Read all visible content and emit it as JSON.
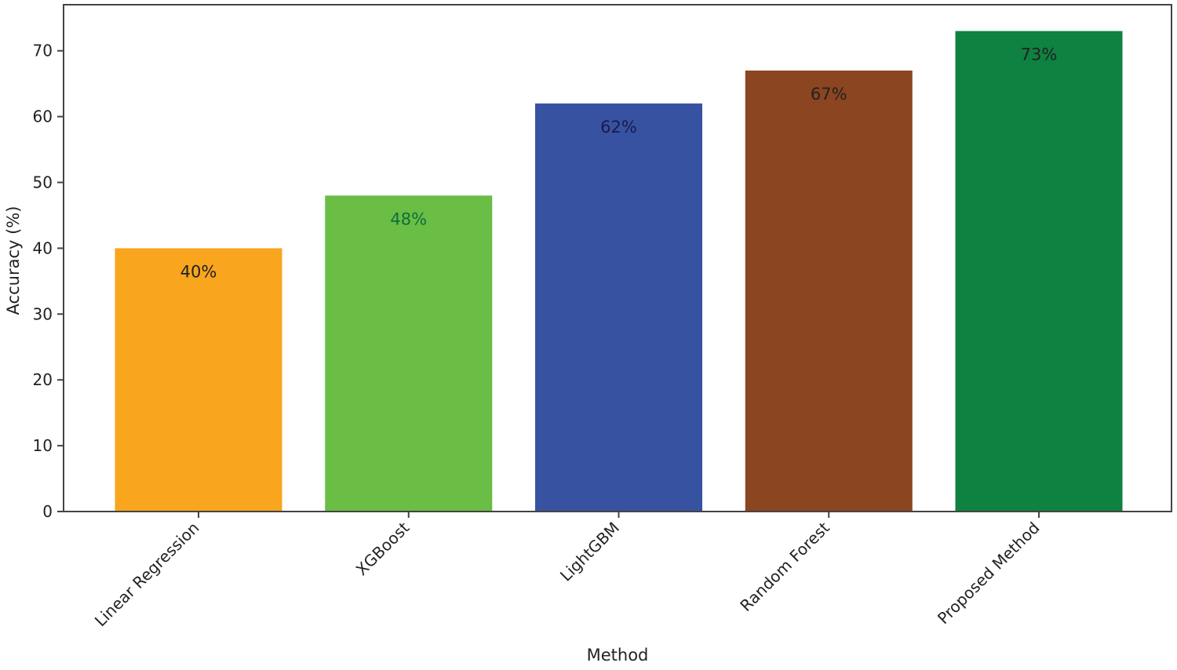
{
  "chart_data": {
    "type": "bar",
    "title": "",
    "xlabel": "Method",
    "ylabel": "Accuracy (%)",
    "categories": [
      "Linear Regression",
      "XGBoost",
      "LightGBM",
      "Random Forest",
      "Proposed Method"
    ],
    "values": [
      40,
      48,
      62,
      67,
      73
    ],
    "value_labels": [
      "40%",
      "48%",
      "62%",
      "67%",
      "73%"
    ],
    "bar_colors": [
      "#f9a51e",
      "#6abd45",
      "#3852a2",
      "#8b4520",
      "#0f8140"
    ],
    "value_label_colors": [
      "#222222",
      "#0f6e3a",
      "#1a1a4a",
      "#222222",
      "#222222"
    ],
    "ylim": [
      0,
      77
    ],
    "yticks": [
      0,
      10,
      20,
      30,
      40,
      50,
      60,
      70
    ],
    "grid": false,
    "legend": "none"
  }
}
